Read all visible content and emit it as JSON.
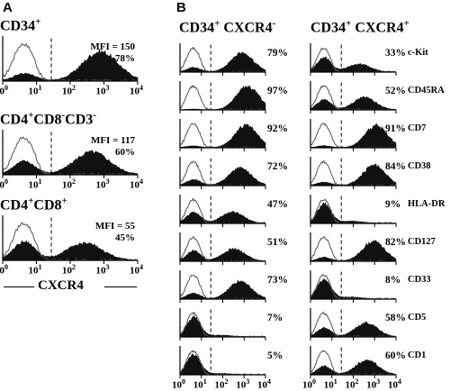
{
  "panel_a": {
    "letter": "A",
    "histograms": [
      {
        "label_main": "CD34",
        "label_sup": "+",
        "label_rest": "",
        "mfi": "MFI = 150",
        "pct": "78%",
        "pos": 0.78
      },
      {
        "label_main": "CD4",
        "label_sup": "+",
        "label_rest": "CD8",
        "label_sup2": "-",
        "label_rest2": "CD3",
        "label_sup3": "-",
        "mfi": "MFI = 117",
        "pct": "60%",
        "pos": 0.6
      },
      {
        "label_main": "CD4",
        "label_sup": "+",
        "label_rest": "CD8",
        "label_sup2": "+",
        "mfi": "MFI = 55",
        "pct": "45%",
        "pos": 0.45
      }
    ],
    "axis_title": "CXCR4"
  },
  "panel_b": {
    "letter": "B",
    "col1_title": {
      "main1": "CD34",
      "sup1": "+",
      "main2": "CXCR4",
      "sup2": "-"
    },
    "col2_title": {
      "main1": "CD34",
      "sup1": "+",
      "main2": "CXCR4",
      "sup2": "+"
    },
    "rows": [
      {
        "marker": "c-Kit",
        "neg": "79%",
        "pos": "33%"
      },
      {
        "marker": "CD45RA",
        "neg": "97%",
        "pos": "52%"
      },
      {
        "marker": "CD7",
        "neg": "92%",
        "pos": "91%"
      },
      {
        "marker": "CD38",
        "neg": "72%",
        "pos": "84%"
      },
      {
        "marker": "HLA-DR",
        "neg": "47%",
        "pos": "9%"
      },
      {
        "marker": "CD127",
        "neg": "51%",
        "pos": "82%"
      },
      {
        "marker": "CD33",
        "neg": "73%",
        "pos": "8%"
      },
      {
        "marker": "CD5",
        "neg": "7%",
        "pos": "58%"
      },
      {
        "marker": "CD1",
        "neg": "5%",
        "pos": "60%"
      }
    ]
  },
  "axis_ticks": {
    "base": "10",
    "exps": [
      "0",
      "1",
      "2",
      "3",
      "4"
    ]
  }
}
